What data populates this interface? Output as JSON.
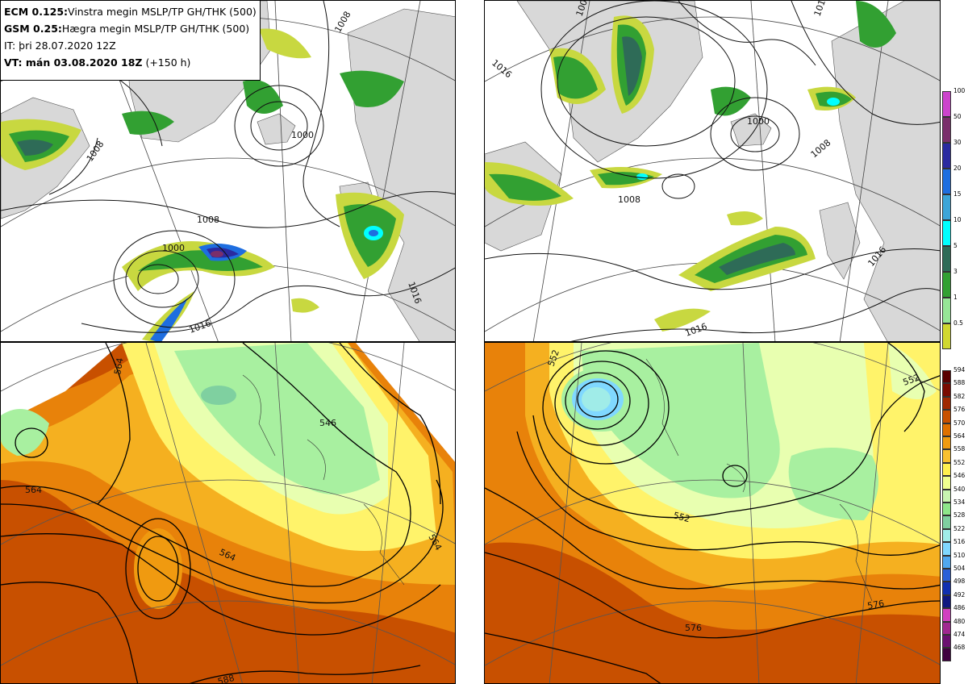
{
  "header": {
    "line1_model": "ECM 0.125:",
    "line1_desc": "Vinstra megin MSLP/TP GH/THK (500)",
    "line2_model": "GSM 0.25:",
    "line2_desc": "Hægra megin MSLP/TP GH/THK (500)",
    "line3": "IT: þri 28.07.2020 12Z",
    "line4_bold": "VT: mán 03.08.2020 18Z",
    "line4_rest": " (+150 h)"
  },
  "precip_scale": {
    "labels": [
      "100",
      "50",
      "30",
      "20",
      "15",
      "10",
      "5",
      "3",
      "1",
      "0.5"
    ],
    "colors": [
      "#cc44cc",
      "#7a2f6b",
      "#2a2aa0",
      "#1e6ee0",
      "#3ca5d8",
      "#00ffff",
      "#2e6b57",
      "#32a032",
      "#96e696",
      "#d0d830"
    ]
  },
  "thk_scale": {
    "labels": [
      "594",
      "588",
      "582",
      "576",
      "570",
      "564",
      "558",
      "552",
      "546",
      "540",
      "534",
      "528",
      "522",
      "516",
      "510",
      "504",
      "498",
      "492",
      "486",
      "480",
      "474",
      "468"
    ],
    "colors": [
      "#5a0000",
      "#7a0a00",
      "#a02800",
      "#c85000",
      "#e07000",
      "#f09a10",
      "#f8c030",
      "#fff050",
      "#f0ff90",
      "#c8f5b0",
      "#8ee68a",
      "#7fd0a0",
      "#a0ece8",
      "#80d8ff",
      "#50a8f0",
      "#2a60d8",
      "#1030b0",
      "#101880",
      "#d040c0",
      "#a02890",
      "#6a1070",
      "#400040"
    ]
  },
  "contour_labels": {
    "tl": [
      "1008",
      "1008",
      "1000",
      "1008",
      "1016",
      "1016",
      "1000"
    ],
    "tr": [
      "1016",
      "1008",
      "1016",
      "1008",
      "1000",
      "1008",
      "1016",
      "1016"
    ],
    "bl": [
      "564",
      "564",
      "564",
      "564",
      "588",
      "546"
    ],
    "br": [
      "552",
      "552",
      "552",
      "576",
      "576"
    ]
  },
  "colors": {
    "land": "#d8d8d8",
    "precip_light": "#c8d840",
    "precip_green": "#32a032",
    "precip_dark": "#2e6b57",
    "thk_dark": "#c85000",
    "thk_orange": "#e8820a",
    "thk_light_orange": "#f5b020",
    "thk_yellow": "#fff36a",
    "thk_pale": "#e8ffb0",
    "thk_green": "#a8f0a0"
  }
}
